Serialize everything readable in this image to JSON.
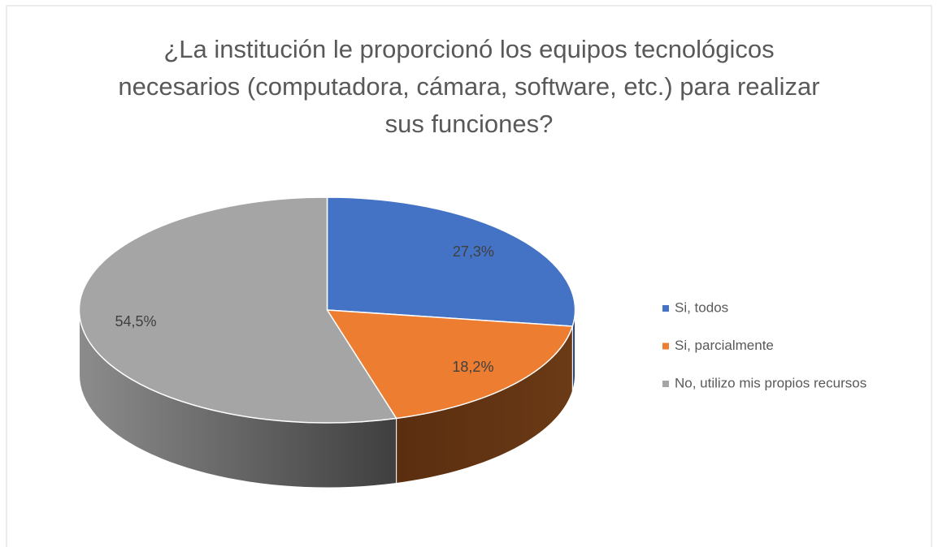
{
  "chart_data": {
    "type": "pie",
    "title": "¿La institución le proporcionó los equipos tecnológicos necesarios (computadora, cámara, software, etc.) para realizar sus funciones?",
    "categories": [
      "Si, todos",
      "Si, parcialmente",
      "No, utilizo mis propios recursos"
    ],
    "values": [
      27.3,
      18.2,
      54.5
    ],
    "value_labels": [
      "27,3%",
      "18,2%",
      "54,5%"
    ],
    "colors": [
      "#4472c4",
      "#ed7d31",
      "#a5a5a5"
    ],
    "legend": "right"
  }
}
